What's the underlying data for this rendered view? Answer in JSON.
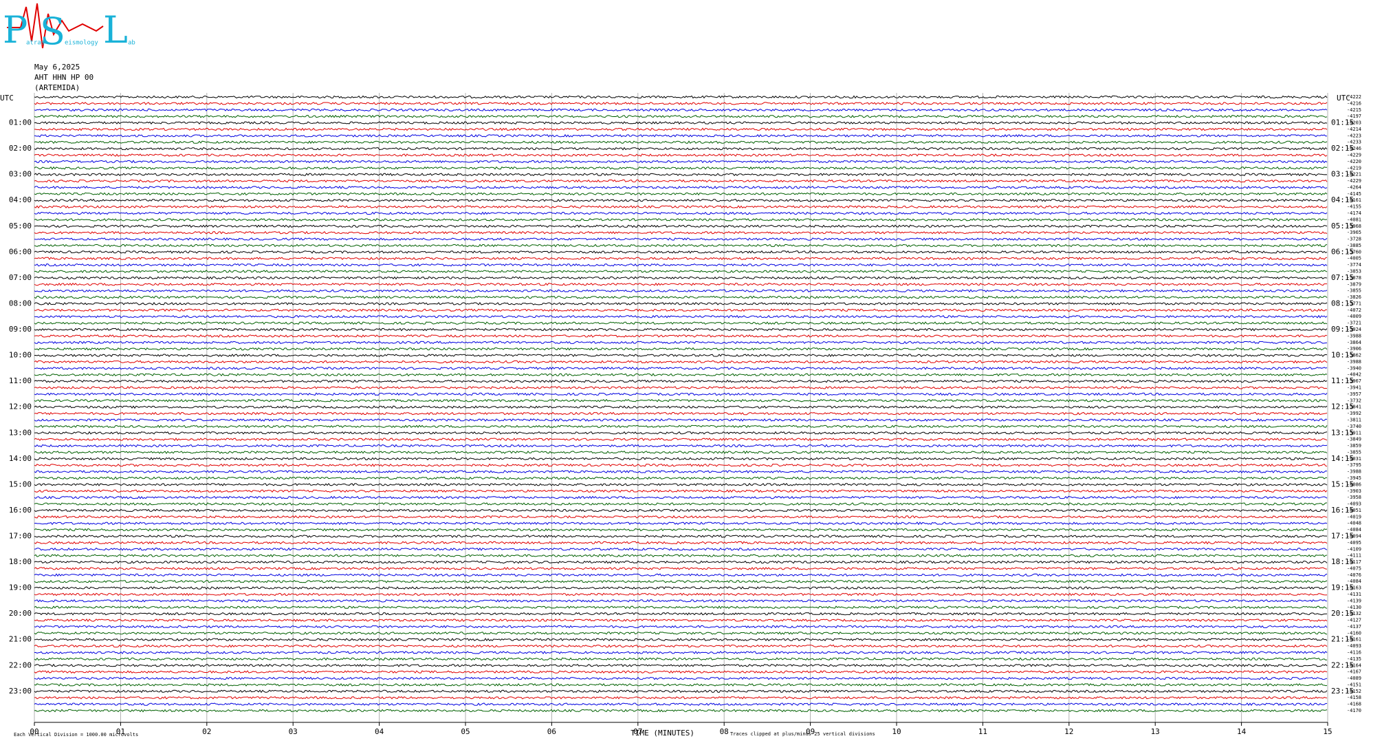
{
  "logo": {
    "letters": [
      "P",
      "S",
      "L"
    ],
    "words": [
      "atras",
      "eismology",
      "ab"
    ]
  },
  "header": {
    "date": "May 6,2025",
    "station": "AHT HHN HP 00",
    "site": "(ARTEMIDA)"
  },
  "left_axis": {
    "title": "UTC",
    "labels": [
      "01:00",
      "02:00",
      "03:00",
      "04:00",
      "05:00",
      "06:00",
      "07:00",
      "08:00",
      "09:00",
      "10:00",
      "11:00",
      "12:00",
      "13:00",
      "14:00",
      "15:00",
      "16:00",
      "17:00",
      "18:00",
      "19:00",
      "20:00",
      "21:00",
      "22:00",
      "23:00"
    ]
  },
  "right_axis": {
    "title": "UTC",
    "labels": [
      "01:15",
      "02:15",
      "03:15",
      "04:15",
      "05:15",
      "06:15",
      "07:15",
      "08:15",
      "09:15",
      "10:15",
      "11:15",
      "12:15",
      "13:15",
      "14:15",
      "15:15",
      "16:15",
      "17:15",
      "18:15",
      "19:15",
      "20:15",
      "21:15",
      "22:15",
      "23:15"
    ]
  },
  "trace_colors": [
    "#000000",
    "#e00000",
    "#0000e0",
    "#006000"
  ],
  "offsets": [
    -4222,
    -4216,
    -4215,
    -4197,
    -4203,
    -4214,
    -4223,
    -4233,
    -4246,
    -4229,
    -4220,
    -4219,
    -4221,
    -4229,
    -4264,
    -4145,
    -4161,
    -4155,
    -4174,
    -4081,
    -3968,
    -3965,
    -3728,
    -3885,
    -3760,
    -4005,
    -3774,
    -3853,
    -3878,
    -3879,
    -3855,
    -3826,
    -3771,
    -4072,
    -4009,
    -3721,
    -3924,
    -3988,
    -3864,
    -3906,
    -3862,
    -3988,
    -3940,
    -4042,
    -3967,
    -3941,
    -3957,
    -3732,
    -3841,
    -3992,
    -3811,
    -3740,
    -3911,
    -3849,
    -3859,
    -3855,
    -4031,
    -3795,
    -3988,
    -3945,
    -4086,
    -3903,
    -3958,
    -4093,
    -4051,
    -4019,
    -4048,
    -4084,
    -4094,
    -4095,
    -4109,
    -4111,
    -4117,
    -4075,
    -4076,
    -4084,
    -4163,
    -4131,
    -4139,
    -4130,
    -4132,
    -4127,
    -4137,
    -4160,
    -4161,
    -4093,
    -4116,
    -4135,
    -4164,
    -4167,
    -4089,
    -4151,
    -4152,
    -4158,
    -4168,
    -4170
  ],
  "x_axis": {
    "title": "TIME (MINUTES)",
    "ticks": [
      {
        "value": 0,
        "label": "00"
      },
      {
        "value": 1,
        "label": "01"
      },
      {
        "value": 2,
        "label": "02"
      },
      {
        "value": 3,
        "label": "03"
      },
      {
        "value": 4,
        "label": "04"
      },
      {
        "value": 5,
        "label": "05"
      },
      {
        "value": 6,
        "label": "06"
      },
      {
        "value": 7,
        "label": "07"
      },
      {
        "value": 8,
        "label": "08"
      },
      {
        "value": 9,
        "label": "09"
      },
      {
        "value": 10,
        "label": "10"
      },
      {
        "value": 11,
        "label": "11"
      },
      {
        "value": 12,
        "label": "12"
      },
      {
        "value": 13,
        "label": "13"
      },
      {
        "value": 14,
        "label": "14"
      },
      {
        "value": 15,
        "label": "15"
      }
    ]
  },
  "footer": {
    "scale": "Each Vertical Division = 1000.00 microvolts",
    "clip": "Traces clipped at plus/minus 25 vertical divisions"
  }
}
